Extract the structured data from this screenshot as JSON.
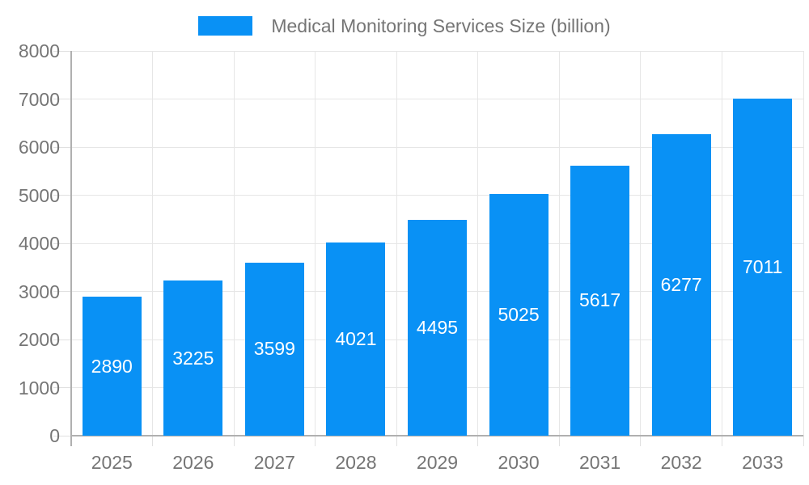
{
  "chart_data": {
    "type": "bar",
    "title": "Medical Monitoring Services Size (billion)",
    "categories": [
      "2025",
      "2026",
      "2027",
      "2028",
      "2029",
      "2030",
      "2031",
      "2032",
      "2033"
    ],
    "values": [
      2890,
      3225,
      3599,
      4021,
      4495,
      5025,
      5617,
      6277,
      7011
    ],
    "xlabel": "",
    "ylabel": "",
    "ylim": [
      0,
      8000
    ],
    "ytick_step": 1000,
    "ytick_labels": [
      "0",
      "1000",
      "2000",
      "3000",
      "4000",
      "5000",
      "6000",
      "7000",
      "8000"
    ],
    "grid": true,
    "legend_position": "top-center",
    "value_label_position": "inside-center",
    "colors": {
      "bar": "#0991F5",
      "label_text": "#757575",
      "value_text": "#ffffff",
      "gridline": "#e6e6e6",
      "tick": "#e0e0e0",
      "axis": "#b0b0b0"
    }
  }
}
